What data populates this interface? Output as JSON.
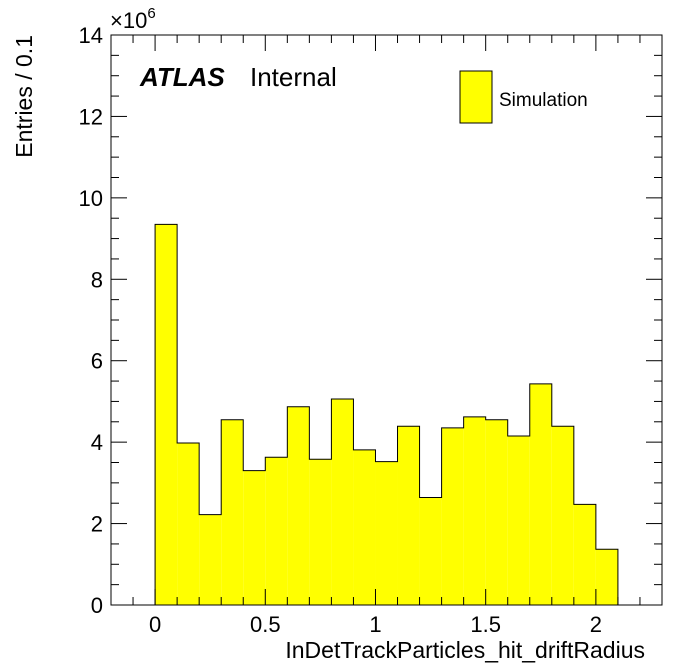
{
  "chart_data": {
    "type": "bar",
    "histogram": true,
    "x_bin_edges": [
      0,
      0.1,
      0.2,
      0.3,
      0.4,
      0.5,
      0.6,
      0.7,
      0.8,
      0.9,
      1.0,
      1.1,
      1.2,
      1.3,
      1.4,
      1.5,
      1.6,
      1.7,
      1.8,
      1.9,
      2.0,
      2.1
    ],
    "series": [
      {
        "name": "Simulation",
        "color": "#ffff00",
        "values": [
          9.35,
          3.98,
          2.22,
          4.55,
          3.3,
          3.63,
          4.87,
          3.58,
          5.06,
          3.81,
          3.52,
          4.39,
          2.64,
          4.35,
          4.62,
          4.55,
          4.15,
          5.43,
          4.39,
          2.47,
          1.37
        ]
      }
    ],
    "xlabel": "InDetTrackParticles_hit_driftRadius",
    "ylabel": "Entries / 0.1",
    "y_multiplier_base": "×10",
    "y_multiplier_exponent": "6",
    "xlim": [
      -0.2,
      2.3
    ],
    "ylim": [
      0,
      14
    ],
    "x_ticks": [
      0,
      0.5,
      1,
      1.5,
      2
    ],
    "x_tick_labels": [
      "0",
      "0.5",
      "1",
      "1.5",
      "2"
    ],
    "y_ticks": [
      0,
      2,
      4,
      6,
      8,
      10,
      12,
      14
    ],
    "y_tick_labels": [
      "0",
      "2",
      "4",
      "6",
      "8",
      "10",
      "12",
      "14"
    ],
    "legend_position": "top-right",
    "grid": false
  },
  "labels": {
    "atlas": "ATLAS",
    "status": "Internal"
  },
  "colors": {
    "fill": "#ffff00",
    "line": "#000000",
    "background": "#ffffff"
  }
}
